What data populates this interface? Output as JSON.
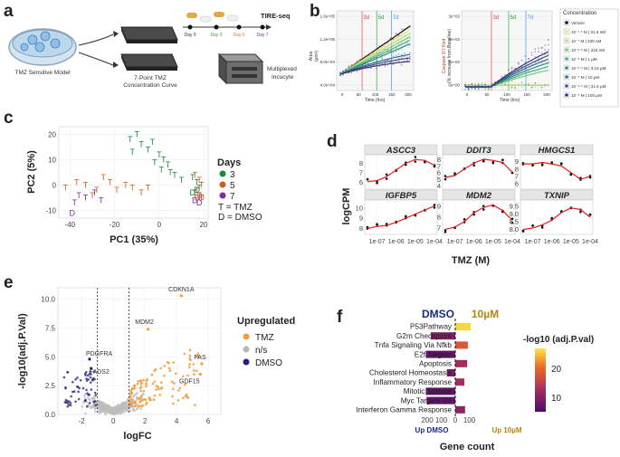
{
  "panels": {
    "a": {
      "label": "a",
      "model_caption": "TMZ Sensitive Model",
      "plate_caption": [
        "7-Point TMZ",
        "Concentration Curve"
      ],
      "days": [
        "Day 0",
        "Day 3",
        "Day 5",
        "Day 7"
      ],
      "tire_label": "TIRE-seq",
      "incucyte_caption": [
        "Multiplexed",
        "Incucyte"
      ]
    },
    "b": {
      "label": "b",
      "left_ylabel": [
        "Area",
        "(µm²)"
      ],
      "right_ylabel": [
        "Caspase 3/7 Red",
        "(% increase from Baseline)"
      ],
      "xlabel": "Time (hrs)",
      "left_yticks": [
        "1.6e+05",
        "1.2e+05",
        "8.0e+04",
        "4.0e+04"
      ],
      "right_yticks": [
        "3e+02",
        "2e+02",
        "1e+02",
        "0e+00"
      ],
      "xticks": [
        "0",
        "50",
        "100",
        "150",
        "200"
      ],
      "markers": [
        "3d",
        "5d",
        "7d"
      ],
      "legend_title": "Concentration",
      "legend": [
        "Vehicle",
        "10⁻⁷·⁵ M | 31.6 nM",
        "10⁻⁷ M | 100 nM",
        "10⁻⁶·⁵ M | 316 nM",
        "10⁻⁶ M | 1 µM",
        "10⁻⁵·⁵ M | 3.16 µM",
        "10⁻⁵ M | 10 µM",
        "10⁻⁴·⁵ M | 31.6 µM",
        "10⁻⁴ M | 100 µM"
      ]
    },
    "c": {
      "label": "c",
      "xlabel": "PC1 (35%)",
      "ylabel": "PC2 (5%)",
      "xticks": [
        "-40",
        "-20",
        "0",
        "20"
      ],
      "yticks": [
        "20",
        "10",
        "0",
        "-10"
      ],
      "legend_title": "Days",
      "legend": [
        "3",
        "5",
        "7"
      ],
      "legend_notes": [
        "T = TMZ",
        "D = DMSO"
      ]
    },
    "d": {
      "label": "d",
      "ylabel": "logCPM",
      "xlabel": "TMZ (M)",
      "xticks": [
        "1e-07",
        "1e-06",
        "1e-05",
        "1e-04"
      ],
      "genes": [
        "ASCC3",
        "DDIT3",
        "HMGCS1",
        "IGFBP5",
        "MDM2",
        "TXNIP"
      ],
      "yticks": [
        [
          "8",
          "7",
          "6"
        ],
        [
          "8",
          "7",
          "6",
          "5",
          "4"
        ],
        [
          "9",
          "8",
          "7",
          "6"
        ],
        [
          "10",
          "9",
          "8"
        ],
        [
          "9",
          "8",
          "7"
        ],
        [
          "9.5",
          "9.0",
          "8.5",
          "8.0"
        ]
      ]
    },
    "e": {
      "label": "e",
      "xlabel": "logFC",
      "ylabel": "-log10(adj.P.Val)",
      "xticks": [
        "-2",
        "0",
        "2",
        "4",
        "6"
      ],
      "yticks": [
        "10.0",
        "7.5",
        "5.0",
        "2.5",
        "0.0"
      ],
      "genes": [
        "CDKN1A",
        "MDM2",
        "PDGFRA",
        "FADS2",
        "FAS",
        "GDF15"
      ],
      "legend_title": "Upregulated",
      "legend": [
        "TMZ",
        "n/s",
        "DMSO"
      ]
    },
    "f": {
      "label": "f",
      "dmso_label": "DMSO",
      "tmz_label": "10µM",
      "pathways": [
        "P53Pathway",
        "G2m Checkpoint",
        "Tnfa Signaling Via Nfkb",
        "E2f Targets",
        "Apoptosis",
        "Cholesterol Homeostasis",
        "Inflammatory Response",
        "Mitotic Spindle",
        "Myc Targets V1",
        "Interferon Gamma Response"
      ],
      "xticks": [
        "200",
        "100",
        "0",
        "100"
      ],
      "up_dmso": "Up DMSO",
      "up_tmz": "Up 10µM",
      "xlabel": "Gene count",
      "legend_title": "-log10 (adj.P.val)",
      "legend_ticks": [
        "20",
        "10"
      ]
    }
  },
  "chart_data": [
    {
      "type": "scatter",
      "title": "PCA",
      "xlabel": "PC1 (35%)",
      "ylabel": "PC2 (5%)",
      "xlim": [
        -45,
        22
      ],
      "ylim": [
        -13,
        23
      ],
      "series": [
        {
          "name": "Day 3 TMZ",
          "symbol": "T",
          "points": [
            [
              -10,
              20
            ],
            [
              -13,
              18
            ],
            [
              -8,
              16
            ],
            [
              -5,
              14
            ],
            [
              -3,
              17
            ],
            [
              -12,
              13
            ],
            [
              0,
              12
            ],
            [
              2,
              10
            ],
            [
              -2,
              9
            ],
            [
              4,
              8
            ],
            [
              1,
              6
            ],
            [
              5,
              5
            ],
            [
              7,
              4
            ],
            [
              10,
              2
            ],
            [
              15,
              3
            ],
            [
              17,
              1
            ],
            [
              18,
              -1
            ]
          ]
        },
        {
          "name": "Day 5 TMZ",
          "symbol": "T",
          "points": [
            [
              -42,
              -1
            ],
            [
              -37,
              1
            ],
            [
              -33,
              0
            ],
            [
              -28,
              -2
            ],
            [
              -25,
              3
            ],
            [
              -22,
              1
            ],
            [
              -19,
              -2
            ],
            [
              -15,
              0
            ],
            [
              -12,
              -1
            ],
            [
              -30,
              -4
            ],
            [
              -8,
              -3
            ],
            [
              -5,
              -1
            ],
            [
              16,
              4
            ],
            [
              18,
              2
            ],
            [
              19,
              0
            ],
            [
              17,
              -2
            ]
          ]
        },
        {
          "name": "Day 7 TMZ",
          "symbol": "T",
          "points": [
            [
              -36,
              -4
            ],
            [
              -33,
              -5
            ],
            [
              -29,
              -3
            ],
            [
              -26,
              -6
            ],
            [
              -38,
              -7
            ],
            [
              16,
              -3
            ],
            [
              18,
              -4
            ],
            [
              19,
              -5
            ]
          ]
        },
        {
          "name": "Day 3 DMSO",
          "symbol": "D",
          "points": [
            [
              15,
              -3
            ],
            [
              17,
              -2
            ]
          ]
        },
        {
          "name": "Day 5 DMSO",
          "symbol": "D",
          "points": [
            [
              18,
              -4
            ],
            [
              19,
              -5
            ],
            [
              17,
              -5
            ]
          ]
        },
        {
          "name": "Day 7 DMSO",
          "symbol": "D",
          "points": [
            [
              -39,
              -11
            ],
            [
              16,
              -6
            ],
            [
              18,
              -7
            ]
          ]
        }
      ]
    },
    {
      "type": "line",
      "title": "Gene expression vs TMZ",
      "xlabel": "TMZ (M)",
      "ylabel": "logCPM",
      "x_log10": [
        -7.5,
        -7,
        -6.5,
        -6,
        -5.5,
        -5,
        -4.5,
        -4
      ],
      "series": [
        {
          "name": "ASCC3",
          "ylim": [
            5.5,
            8.7
          ],
          "values": [
            6.1,
            6.2,
            6.6,
            7.3,
            8.0,
            8.4,
            8.3,
            7.8
          ]
        },
        {
          "name": "DDIT3",
          "ylim": [
            3.8,
            8.5
          ],
          "values": [
            5.3,
            5.6,
            6.6,
            7.5,
            8.1,
            7.9,
            7.6,
            6.1
          ]
        },
        {
          "name": "HMGCS1",
          "ylim": [
            5.5,
            9.7
          ],
          "values": [
            8.7,
            8.7,
            8.9,
            8.7,
            8.4,
            7.5,
            6.6,
            7.0
          ]
        },
        {
          "name": "IGFBP5",
          "ylim": [
            7.6,
            10.6
          ],
          "values": [
            8.0,
            8.2,
            8.3,
            8.6,
            9.0,
            9.4,
            9.8,
            10.2
          ]
        },
        {
          "name": "MDM2",
          "ylim": [
            6.6,
            9.4
          ],
          "values": [
            6.9,
            7.1,
            7.6,
            8.4,
            8.9,
            9.1,
            8.6,
            7.7
          ]
        },
        {
          "name": "TXNIP",
          "ylim": [
            7.8,
            9.8
          ],
          "values": [
            8.0,
            8.1,
            8.3,
            8.6,
            9.1,
            9.4,
            9.3,
            8.8
          ]
        }
      ]
    },
    {
      "type": "scatter",
      "title": "Volcano",
      "xlabel": "logFC",
      "ylabel": "-log10(adj.P.Val)",
      "xlim": [
        -3.5,
        6.8
      ],
      "ylim": [
        0,
        11
      ],
      "thresholds": [
        -1,
        1
      ],
      "labeled": [
        {
          "gene": "CDKN1A",
          "x": 4.3,
          "y": 10.3,
          "group": "TMZ"
        },
        {
          "gene": "MDM2",
          "x": 2.2,
          "y": 7.4,
          "group": "TMZ"
        },
        {
          "gene": "PDGFRA",
          "x": -1.5,
          "y": 4.8,
          "group": "DMSO"
        },
        {
          "gene": "FADS2",
          "x": -1.4,
          "y": 4.0,
          "group": "DMSO"
        },
        {
          "gene": "FAS",
          "x": 5.6,
          "y": 4.4,
          "group": "TMZ"
        },
        {
          "gene": "GDF15",
          "x": 5.5,
          "y": 3.5,
          "group": "TMZ"
        }
      ]
    },
    {
      "type": "bar",
      "title": "Hallmark pathways",
      "xlabel": "Gene count",
      "categories": [
        "P53Pathway",
        "G2m Checkpoint",
        "Tnfa Signaling Via Nfkb",
        "E2f Targets",
        "Apoptosis",
        "Cholesterol Homeostasis",
        "Inflammatory Response",
        "Mitotic Spindle",
        "Myc Targets V1",
        "Interferon Gamma Response"
      ],
      "values": [
        110,
        -175,
        90,
        -210,
        85,
        -60,
        65,
        -210,
        -205,
        70
      ],
      "neglog10_padj": [
        27,
        10,
        19,
        7,
        13,
        9,
        13,
        7,
        7,
        11
      ]
    }
  ]
}
